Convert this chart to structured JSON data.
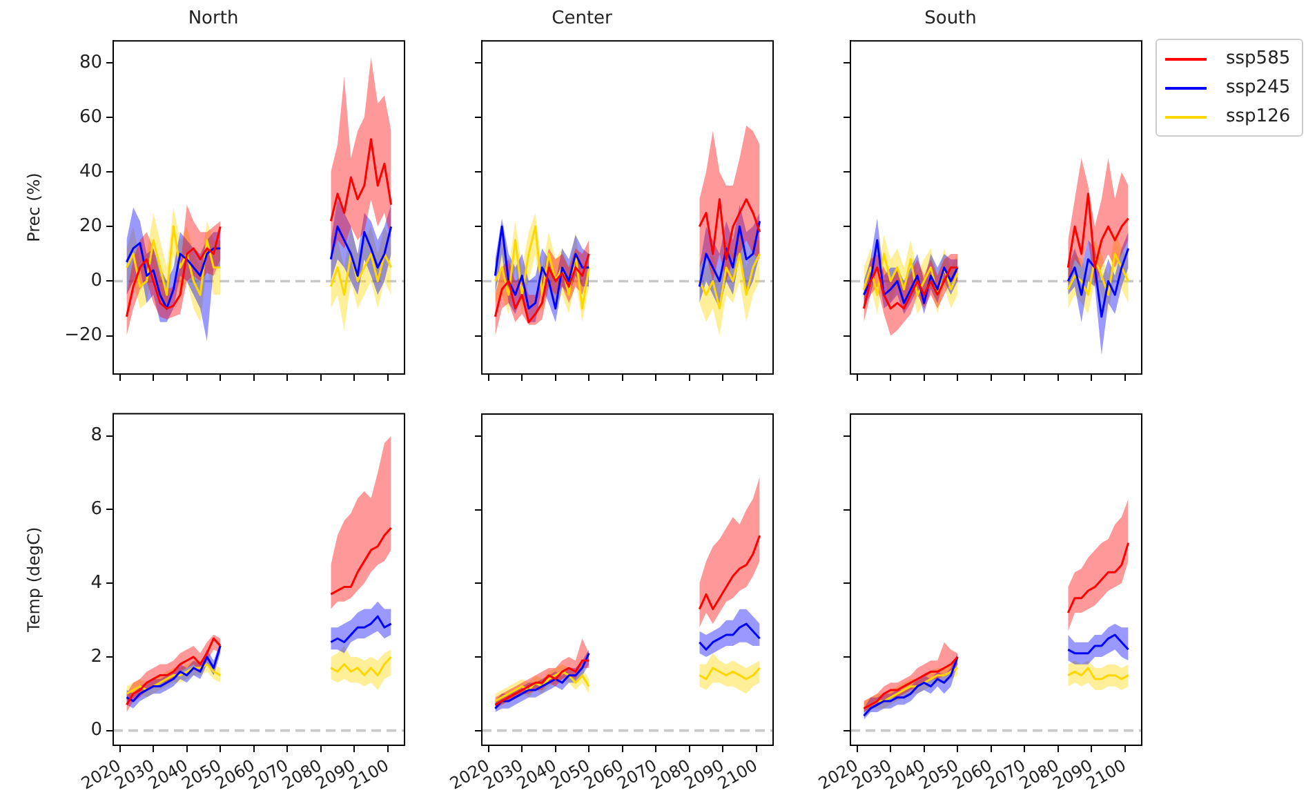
{
  "chart_data": [
    {
      "type": "line",
      "title": "North",
      "ylabel": "Prec (%)",
      "x": [
        2022,
        2024,
        2026,
        2028,
        2030,
        2032,
        2034,
        2036,
        2038,
        2040,
        2042,
        2044,
        2046,
        2048,
        2050,
        2066,
        2083,
        2085,
        2087,
        2089,
        2091,
        2093,
        2095,
        2097,
        2099,
        2101
      ],
      "xlim": [
        2018,
        2105
      ],
      "xticks": [
        2020,
        2030,
        2040,
        2050,
        2060,
        2070,
        2080,
        2090,
        2100
      ],
      "ylim": [
        -34,
        88
      ],
      "yticks": [
        -20,
        0,
        20,
        40,
        60,
        80
      ],
      "tick_labels": "y",
      "ref_lines": [
        {
          "axis": "y",
          "value": 0,
          "color": "#c8c8c8",
          "line_style": "dashed"
        }
      ],
      "series": [
        {
          "color": "#ff0000",
          "values": [
            -13,
            -2,
            5,
            8,
            0,
            -8,
            -10,
            -9,
            -5,
            10,
            12,
            8,
            12,
            10,
            20,
            null,
            22,
            32,
            25,
            38,
            30,
            35,
            52,
            35,
            43,
            28
          ],
          "lower": [
            -20,
            -10,
            -3,
            0,
            -8,
            -13,
            -14,
            -13,
            -12,
            0,
            2,
            0,
            3,
            2,
            8,
            null,
            8,
            15,
            12,
            20,
            15,
            18,
            30,
            20,
            25,
            15
          ],
          "upper": [
            -5,
            8,
            15,
            18,
            12,
            2,
            -3,
            -2,
            5,
            28,
            22,
            18,
            18,
            20,
            22,
            null,
            40,
            50,
            75,
            45,
            55,
            60,
            82,
            65,
            68,
            55
          ]
        },
        {
          "color": "#0000ff",
          "values": [
            7,
            12,
            14,
            2,
            4,
            -5,
            -10,
            -3,
            10,
            8,
            5,
            2,
            10,
            12,
            12,
            null,
            8,
            20,
            15,
            10,
            2,
            18,
            12,
            5,
            10,
            20
          ],
          "lower": [
            -5,
            0,
            5,
            -8,
            -5,
            -15,
            -15,
            -10,
            2,
            0,
            -5,
            -10,
            -22,
            5,
            5,
            null,
            0,
            8,
            5,
            0,
            -5,
            8,
            2,
            -5,
            0,
            10
          ],
          "upper": [
            15,
            27,
            22,
            10,
            12,
            5,
            0,
            5,
            18,
            15,
            12,
            10,
            15,
            18,
            18,
            null,
            15,
            30,
            25,
            20,
            10,
            25,
            22,
            15,
            20,
            28
          ]
        },
        {
          "color": "#ffd700",
          "values": [
            5,
            10,
            -2,
            0,
            15,
            5,
            -5,
            20,
            5,
            10,
            0,
            -5,
            15,
            5,
            5,
            null,
            -2,
            5,
            -5,
            10,
            0,
            5,
            10,
            0,
            10,
            5
          ],
          "lower": [
            -5,
            0,
            -10,
            -8,
            5,
            -5,
            -12,
            10,
            -5,
            0,
            -10,
            -15,
            5,
            -5,
            -5,
            null,
            -10,
            -5,
            -18,
            0,
            -10,
            -5,
            0,
            -10,
            0,
            -5
          ],
          "upper": [
            12,
            20,
            8,
            10,
            25,
            15,
            5,
            27,
            15,
            20,
            10,
            5,
            22,
            15,
            15,
            null,
            8,
            15,
            5,
            20,
            10,
            15,
            20,
            10,
            20,
            15
          ]
        }
      ]
    },
    {
      "type": "line",
      "title": "Center",
      "x": [
        2022,
        2024,
        2026,
        2028,
        2030,
        2032,
        2034,
        2036,
        2038,
        2040,
        2042,
        2044,
        2046,
        2048,
        2050,
        2066,
        2083,
        2085,
        2087,
        2089,
        2091,
        2093,
        2095,
        2097,
        2099,
        2101
      ],
      "xlim": [
        2018,
        2105
      ],
      "xticks": [
        2020,
        2030,
        2040,
        2050,
        2060,
        2070,
        2080,
        2090,
        2100
      ],
      "ylim": [
        -34,
        88
      ],
      "yticks": [
        -20,
        0,
        20,
        40,
        60,
        80
      ],
      "tick_labels": false,
      "ref_lines": [
        {
          "axis": "y",
          "value": 0,
          "color": "#c8c8c8",
          "line_style": "dashed"
        }
      ],
      "series": [
        {
          "color": "#ff0000",
          "values": [
            -13,
            -3,
            0,
            -10,
            -5,
            -15,
            -12,
            -8,
            5,
            0,
            3,
            -2,
            5,
            2,
            10,
            null,
            20,
            25,
            10,
            30,
            8,
            20,
            25,
            30,
            25,
            18
          ],
          "lower": [
            -20,
            -10,
            -8,
            -15,
            -12,
            -16,
            -16,
            -14,
            -2,
            -5,
            -2,
            -8,
            -2,
            -5,
            5,
            null,
            5,
            10,
            0,
            10,
            0,
            8,
            10,
            15,
            10,
            8
          ],
          "upper": [
            -5,
            5,
            8,
            0,
            2,
            -5,
            -5,
            0,
            12,
            8,
            10,
            5,
            12,
            10,
            15,
            null,
            30,
            40,
            55,
            40,
            35,
            35,
            45,
            57,
            55,
            50
          ]
        },
        {
          "color": "#0000ff",
          "values": [
            2,
            20,
            0,
            -5,
            2,
            -10,
            -8,
            5,
            0,
            -10,
            5,
            0,
            10,
            5,
            5,
            null,
            -2,
            10,
            5,
            0,
            12,
            5,
            20,
            8,
            10,
            22
          ],
          "lower": [
            -5,
            10,
            -8,
            -12,
            -5,
            -15,
            -15,
            -2,
            -8,
            -15,
            -2,
            -5,
            2,
            -2,
            -2,
            null,
            -8,
            0,
            -5,
            -10,
            0,
            -5,
            10,
            -5,
            0,
            10
          ],
          "upper": [
            8,
            23,
            10,
            5,
            10,
            0,
            2,
            12,
            8,
            0,
            12,
            8,
            17,
            12,
            10,
            null,
            5,
            20,
            15,
            10,
            22,
            15,
            28,
            18,
            20,
            25
          ]
        },
        {
          "color": "#ffd700",
          "values": [
            0,
            5,
            -5,
            15,
            -5,
            10,
            20,
            -5,
            10,
            0,
            5,
            -5,
            10,
            -10,
            5,
            null,
            0,
            -5,
            0,
            -10,
            5,
            0,
            10,
            -5,
            5,
            10
          ],
          "lower": [
            -8,
            -5,
            -12,
            5,
            -12,
            0,
            10,
            -12,
            0,
            -8,
            -5,
            -12,
            0,
            -15,
            -2,
            null,
            -8,
            -15,
            -10,
            -20,
            -5,
            -8,
            0,
            -15,
            -5,
            0
          ],
          "upper": [
            8,
            15,
            5,
            22,
            5,
            18,
            25,
            5,
            18,
            8,
            12,
            5,
            18,
            0,
            12,
            null,
            8,
            5,
            10,
            0,
            15,
            10,
            20,
            5,
            15,
            15
          ]
        }
      ]
    },
    {
      "type": "line",
      "title": "South",
      "legend": "top right",
      "x": [
        2022,
        2024,
        2026,
        2028,
        2030,
        2032,
        2034,
        2036,
        2038,
        2040,
        2042,
        2044,
        2046,
        2048,
        2050,
        2066,
        2083,
        2085,
        2087,
        2089,
        2091,
        2093,
        2095,
        2097,
        2099,
        2101
      ],
      "xlim": [
        2018,
        2105
      ],
      "xticks": [
        2020,
        2030,
        2040,
        2050,
        2060,
        2070,
        2080,
        2090,
        2100
      ],
      "ylim": [
        -34,
        88
      ],
      "yticks": [
        -20,
        0,
        20,
        40,
        60,
        80
      ],
      "tick_labels": false,
      "ref_lines": [
        {
          "axis": "y",
          "value": 0,
          "color": "#c8c8c8",
          "line_style": "dashed"
        }
      ],
      "series": [
        {
          "name": "ssp585",
          "color": "#ff0000",
          "values": [
            -10,
            0,
            5,
            -5,
            -10,
            -8,
            -10,
            -5,
            0,
            -5,
            0,
            -5,
            0,
            5,
            5,
            null,
            5,
            20,
            10,
            32,
            5,
            15,
            20,
            15,
            20,
            23
          ],
          "lower": [
            -15,
            -5,
            -2,
            -12,
            -20,
            -18,
            -15,
            -12,
            -5,
            -10,
            -5,
            -10,
            -5,
            0,
            0,
            null,
            -2,
            8,
            5,
            15,
            -2,
            5,
            10,
            5,
            10,
            15
          ],
          "upper": [
            -3,
            8,
            10,
            5,
            0,
            5,
            -2,
            3,
            8,
            2,
            8,
            2,
            8,
            10,
            10,
            null,
            15,
            30,
            45,
            35,
            20,
            30,
            45,
            30,
            40,
            35
          ]
        },
        {
          "name": "ssp245",
          "color": "#0000ff",
          "values": [
            -5,
            0,
            15,
            -5,
            -3,
            0,
            -8,
            -3,
            2,
            -8,
            2,
            -3,
            5,
            0,
            5,
            null,
            0,
            5,
            -5,
            8,
            5,
            -13,
            0,
            -5,
            5,
            12
          ],
          "lower": [
            -10,
            -5,
            5,
            -10,
            -8,
            -5,
            -12,
            -8,
            -3,
            -12,
            -3,
            -8,
            0,
            -5,
            0,
            null,
            -5,
            -2,
            -15,
            0,
            -2,
            -27,
            -8,
            -12,
            -2,
            5
          ],
          "upper": [
            0,
            8,
            23,
            2,
            5,
            5,
            0,
            5,
            10,
            0,
            10,
            5,
            10,
            8,
            8,
            null,
            5,
            12,
            5,
            15,
            12,
            0,
            8,
            2,
            12,
            18
          ]
        },
        {
          "name": "ssp126",
          "color": "#ffd700",
          "values": [
            -3,
            5,
            -5,
            10,
            0,
            5,
            -3,
            8,
            -5,
            0,
            5,
            -5,
            5,
            -3,
            3,
            null,
            -3,
            2,
            0,
            -5,
            8,
            2,
            -5,
            10,
            5,
            0
          ],
          "lower": [
            -10,
            -2,
            -12,
            3,
            -8,
            -2,
            -10,
            0,
            -12,
            -8,
            -2,
            -12,
            -2,
            -10,
            -5,
            null,
            -10,
            -5,
            -8,
            -12,
            0,
            -5,
            -12,
            2,
            -3,
            -8
          ],
          "upper": [
            5,
            12,
            2,
            17,
            8,
            12,
            5,
            15,
            3,
            8,
            12,
            2,
            12,
            5,
            10,
            null,
            5,
            10,
            8,
            2,
            15,
            10,
            2,
            18,
            12,
            8
          ]
        }
      ]
    },
    {
      "type": "line",
      "ylabel": "Temp (degC)",
      "x": [
        2022,
        2024,
        2026,
        2028,
        2030,
        2032,
        2034,
        2036,
        2038,
        2040,
        2042,
        2044,
        2046,
        2048,
        2050,
        2066,
        2083,
        2085,
        2087,
        2089,
        2091,
        2093,
        2095,
        2097,
        2099,
        2101
      ],
      "xlim": [
        2018,
        2105
      ],
      "xticks": [
        2020,
        2030,
        2040,
        2050,
        2060,
        2070,
        2080,
        2090,
        2100
      ],
      "ylim": [
        -0.4,
        8.6
      ],
      "yticks": [
        0,
        2,
        4,
        6,
        8
      ],
      "ref_lines": [
        {
          "axis": "y",
          "value": 0,
          "color": "#c8c8c8",
          "line_style": "dashed"
        }
      ],
      "series": [
        {
          "color": "#ff0000",
          "values": [
            0.7,
            1.0,
            1.1,
            1.3,
            1.4,
            1.5,
            1.5,
            1.6,
            1.8,
            1.9,
            2.0,
            1.8,
            2.1,
            2.5,
            2.3,
            null,
            3.7,
            3.8,
            3.9,
            3.9,
            4.3,
            4.6,
            4.9,
            5.0,
            5.3,
            5.5
          ],
          "lower": [
            0.5,
            0.8,
            0.9,
            1.1,
            1.2,
            1.3,
            1.3,
            1.4,
            1.6,
            1.7,
            1.8,
            1.6,
            1.9,
            2.2,
            2.1,
            null,
            3.3,
            3.5,
            3.5,
            3.6,
            3.8,
            4.0,
            4.3,
            4.5,
            4.6,
            4.9
          ],
          "upper": [
            1.0,
            1.3,
            1.4,
            1.6,
            1.7,
            1.8,
            1.8,
            1.9,
            2.1,
            2.2,
            2.3,
            2.1,
            2.4,
            2.6,
            2.5,
            null,
            4.5,
            5.3,
            5.7,
            5.9,
            6.3,
            6.5,
            6.3,
            7.0,
            7.8,
            8.0
          ]
        },
        {
          "color": "#0000ff",
          "values": [
            0.9,
            0.8,
            1.0,
            1.1,
            1.2,
            1.2,
            1.3,
            1.4,
            1.6,
            1.5,
            1.7,
            1.6,
            2.0,
            1.7,
            2.3,
            null,
            2.4,
            2.5,
            2.4,
            2.6,
            2.8,
            2.8,
            2.9,
            3.1,
            2.8,
            2.9
          ],
          "lower": [
            0.7,
            0.6,
            0.8,
            0.9,
            1.0,
            1.0,
            1.1,
            1.2,
            1.4,
            1.3,
            1.5,
            1.4,
            1.8,
            1.5,
            2.1,
            null,
            2.2,
            2.2,
            2.1,
            2.4,
            2.5,
            2.5,
            2.6,
            2.7,
            2.5,
            2.6
          ],
          "upper": [
            1.1,
            1.0,
            1.2,
            1.3,
            1.4,
            1.4,
            1.5,
            1.6,
            1.8,
            1.7,
            1.9,
            1.8,
            2.2,
            1.9,
            2.4,
            null,
            2.8,
            2.8,
            2.9,
            3.0,
            3.2,
            3.3,
            3.3,
            3.5,
            3.3,
            3.3
          ]
        },
        {
          "color": "#ffd700",
          "values": [
            1.0,
            1.1,
            1.2,
            1.1,
            1.2,
            1.3,
            1.4,
            1.5,
            1.5,
            1.6,
            1.7,
            1.7,
            1.8,
            1.6,
            1.5,
            null,
            1.7,
            1.6,
            1.8,
            1.6,
            1.7,
            1.5,
            1.7,
            1.5,
            1.8,
            2.0
          ],
          "lower": [
            0.8,
            0.9,
            1.0,
            0.9,
            1.0,
            1.1,
            1.2,
            1.3,
            1.3,
            1.4,
            1.5,
            1.5,
            1.6,
            1.4,
            1.3,
            null,
            1.4,
            1.3,
            1.4,
            1.3,
            1.3,
            1.2,
            1.3,
            1.1,
            1.4,
            1.5
          ],
          "upper": [
            1.2,
            1.3,
            1.4,
            1.3,
            1.4,
            1.5,
            1.6,
            1.7,
            1.7,
            1.8,
            1.9,
            1.9,
            2.0,
            1.8,
            1.7,
            null,
            2.0,
            2.1,
            2.3,
            2.0,
            2.0,
            1.9,
            2.0,
            1.9,
            2.1,
            2.2
          ]
        }
      ]
    },
    {
      "type": "line",
      "x": [
        2022,
        2024,
        2026,
        2028,
        2030,
        2032,
        2034,
        2036,
        2038,
        2040,
        2042,
        2044,
        2046,
        2048,
        2050,
        2066,
        2083,
        2085,
        2087,
        2089,
        2091,
        2093,
        2095,
        2097,
        2099,
        2101
      ],
      "xlim": [
        2018,
        2105
      ],
      "xticks": [
        2020,
        2030,
        2040,
        2050,
        2060,
        2070,
        2080,
        2090,
        2100
      ],
      "ylim": [
        -0.4,
        8.6
      ],
      "yticks": [
        0,
        2,
        4,
        6,
        8
      ],
      "tick_labels": "x",
      "ref_lines": [
        {
          "axis": "y",
          "value": 0,
          "color": "#c8c8c8",
          "line_style": "dashed"
        }
      ],
      "series": [
        {
          "color": "#ff0000",
          "values": [
            0.7,
            0.8,
            0.9,
            1.0,
            1.1,
            1.2,
            1.3,
            1.3,
            1.5,
            1.4,
            1.6,
            1.7,
            1.6,
            1.9,
            1.9,
            null,
            3.3,
            3.7,
            3.3,
            3.6,
            3.9,
            4.2,
            4.4,
            4.5,
            4.8,
            5.3
          ],
          "lower": [
            0.6,
            0.7,
            0.8,
            0.9,
            1.0,
            1.0,
            1.1,
            1.1,
            1.3,
            1.2,
            1.4,
            1.5,
            1.4,
            1.7,
            1.7,
            null,
            2.8,
            3.2,
            2.9,
            3.2,
            3.5,
            3.6,
            3.8,
            3.9,
            4.2,
            4.6
          ],
          "upper": [
            0.9,
            1.0,
            1.1,
            1.2,
            1.3,
            1.4,
            1.5,
            1.6,
            1.7,
            1.7,
            1.9,
            2.0,
            1.9,
            2.5,
            2.1,
            null,
            4.0,
            4.6,
            5.0,
            5.2,
            5.5,
            5.8,
            5.6,
            6.0,
            6.3,
            6.9
          ]
        },
        {
          "color": "#0000ff",
          "values": [
            0.6,
            0.8,
            0.8,
            0.9,
            1.0,
            1.1,
            1.1,
            1.2,
            1.3,
            1.4,
            1.3,
            1.5,
            1.5,
            1.7,
            2.1,
            null,
            2.4,
            2.2,
            2.4,
            2.5,
            2.6,
            2.6,
            2.8,
            2.9,
            2.7,
            2.5
          ],
          "lower": [
            0.5,
            0.6,
            0.6,
            0.7,
            0.8,
            0.9,
            0.9,
            1.0,
            1.1,
            1.2,
            1.1,
            1.3,
            1.3,
            1.5,
            1.8,
            null,
            2.1,
            2.0,
            2.1,
            2.2,
            2.3,
            2.3,
            2.4,
            2.4,
            2.3,
            2.3
          ],
          "upper": [
            0.8,
            1.0,
            1.0,
            1.1,
            1.2,
            1.3,
            1.3,
            1.4,
            1.5,
            1.6,
            1.5,
            1.7,
            1.7,
            1.9,
            2.2,
            null,
            2.7,
            2.6,
            2.7,
            2.8,
            3.0,
            3.0,
            3.3,
            3.3,
            3.1,
            2.9
          ]
        },
        {
          "color": "#ffd700",
          "values": [
            0.8,
            0.9,
            1.0,
            1.1,
            1.2,
            1.1,
            1.3,
            1.2,
            1.4,
            1.5,
            1.6,
            1.5,
            1.3,
            1.5,
            1.2,
            null,
            1.5,
            1.4,
            1.7,
            1.6,
            1.5,
            1.6,
            1.5,
            1.4,
            1.5,
            1.7
          ],
          "lower": [
            0.6,
            0.7,
            0.8,
            0.9,
            1.0,
            0.9,
            1.1,
            1.0,
            1.2,
            1.3,
            1.4,
            1.3,
            1.1,
            1.3,
            1.0,
            null,
            1.2,
            1.1,
            1.3,
            1.3,
            1.2,
            1.2,
            1.1,
            1.0,
            1.2,
            1.3
          ],
          "upper": [
            1.0,
            1.1,
            1.2,
            1.3,
            1.4,
            1.3,
            1.5,
            1.4,
            1.6,
            1.7,
            1.8,
            1.7,
            1.5,
            1.7,
            1.4,
            null,
            1.8,
            1.8,
            2.1,
            1.9,
            1.8,
            1.9,
            1.8,
            1.7,
            1.8,
            1.9
          ]
        }
      ]
    },
    {
      "type": "line",
      "x": [
        2022,
        2024,
        2026,
        2028,
        2030,
        2032,
        2034,
        2036,
        2038,
        2040,
        2042,
        2044,
        2046,
        2048,
        2050,
        2066,
        2083,
        2085,
        2087,
        2089,
        2091,
        2093,
        2095,
        2097,
        2099,
        2101
      ],
      "xlim": [
        2018,
        2105
      ],
      "xticks": [
        2020,
        2030,
        2040,
        2050,
        2060,
        2070,
        2080,
        2090,
        2100
      ],
      "ylim": [
        -0.4,
        8.6
      ],
      "yticks": [
        0,
        2,
        4,
        6,
        8
      ],
      "tick_labels": "x",
      "ref_lines": [
        {
          "axis": "y",
          "value": 0,
          "color": "#c8c8c8",
          "line_style": "dashed"
        }
      ],
      "series": [
        {
          "color": "#ff0000",
          "values": [
            0.6,
            0.7,
            0.8,
            1.0,
            1.1,
            1.1,
            1.2,
            1.3,
            1.4,
            1.5,
            1.6,
            1.6,
            1.7,
            1.8,
            2.0,
            null,
            3.2,
            3.6,
            3.6,
            3.8,
            3.9,
            4.1,
            4.3,
            4.3,
            4.5,
            5.1
          ],
          "lower": [
            0.5,
            0.6,
            0.7,
            0.8,
            0.9,
            0.9,
            1.0,
            1.1,
            1.2,
            1.3,
            1.4,
            1.4,
            1.5,
            1.6,
            1.8,
            null,
            2.7,
            3.2,
            3.2,
            3.3,
            3.4,
            3.6,
            3.8,
            3.9,
            4.0,
            4.6
          ],
          "upper": [
            0.8,
            0.9,
            1.0,
            1.2,
            1.3,
            1.3,
            1.4,
            1.5,
            1.7,
            1.8,
            1.9,
            1.9,
            2.4,
            2.2,
            2.1,
            null,
            3.9,
            4.3,
            4.4,
            4.7,
            4.9,
            5.1,
            5.2,
            5.6,
            5.8,
            6.3
          ]
        },
        {
          "color": "#0000ff",
          "values": [
            0.4,
            0.6,
            0.7,
            0.8,
            0.8,
            0.9,
            0.9,
            1.0,
            1.2,
            1.3,
            1.2,
            1.4,
            1.3,
            1.5,
            2.0,
            null,
            2.2,
            2.1,
            2.1,
            2.1,
            2.3,
            2.3,
            2.5,
            2.6,
            2.4,
            2.2
          ],
          "lower": [
            0.3,
            0.5,
            0.5,
            0.6,
            0.6,
            0.7,
            0.7,
            0.8,
            1.0,
            1.1,
            1.0,
            1.2,
            1.0,
            1.2,
            1.8,
            null,
            1.9,
            1.8,
            1.8,
            1.8,
            2.0,
            2.0,
            2.1,
            2.2,
            2.0,
            1.9
          ],
          "upper": [
            0.6,
            0.9,
            0.9,
            1.0,
            1.0,
            1.1,
            1.1,
            1.2,
            1.4,
            1.5,
            1.4,
            1.6,
            1.5,
            1.7,
            2.1,
            null,
            2.6,
            2.4,
            2.4,
            2.4,
            2.6,
            2.6,
            2.8,
            2.9,
            2.8,
            2.8
          ]
        },
        {
          "color": "#ffd700",
          "values": [
            0.6,
            0.7,
            0.8,
            0.8,
            0.9,
            1.0,
            1.1,
            1.2,
            1.2,
            1.3,
            1.4,
            1.5,
            1.5,
            1.6,
            1.7,
            null,
            1.5,
            1.6,
            1.5,
            1.7,
            1.4,
            1.4,
            1.5,
            1.5,
            1.4,
            1.5
          ],
          "lower": [
            0.5,
            0.6,
            0.6,
            0.6,
            0.7,
            0.8,
            0.9,
            1.0,
            1.0,
            1.1,
            1.2,
            1.3,
            1.3,
            1.4,
            1.5,
            null,
            1.2,
            1.3,
            1.2,
            1.3,
            1.1,
            1.1,
            1.2,
            1.2,
            1.1,
            1.2
          ],
          "upper": [
            0.8,
            0.9,
            1.0,
            1.0,
            1.1,
            1.2,
            1.3,
            1.4,
            1.4,
            1.5,
            1.6,
            1.7,
            1.7,
            1.8,
            1.9,
            null,
            1.8,
            1.9,
            1.8,
            1.9,
            1.7,
            1.7,
            1.8,
            1.8,
            1.7,
            1.8
          ]
        }
      ]
    }
  ]
}
